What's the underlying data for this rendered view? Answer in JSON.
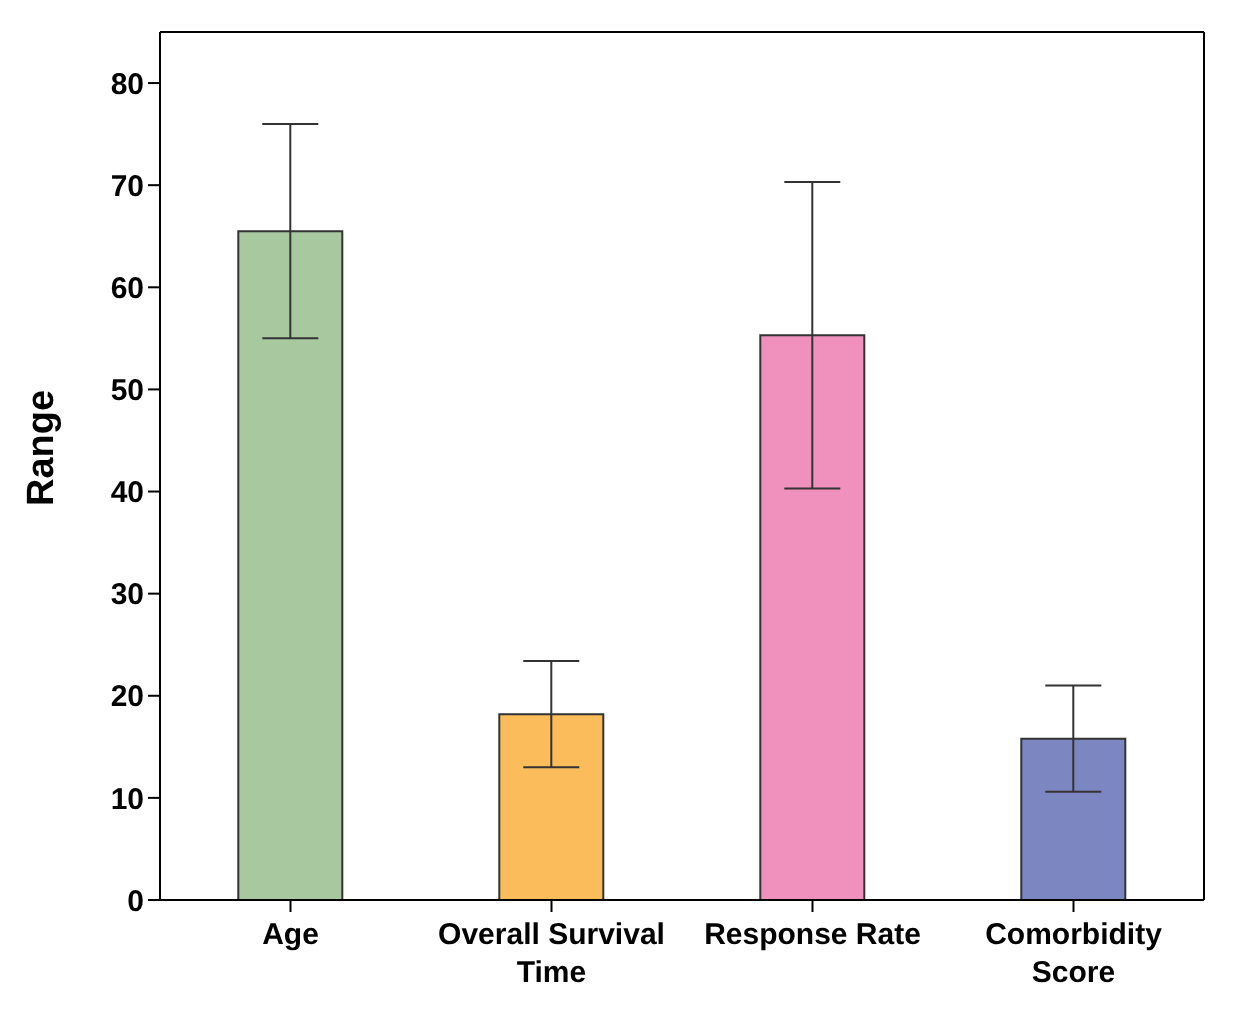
{
  "chart_data": {
    "type": "bar",
    "ylabel": "Range",
    "categories": [
      "Age",
      "Overall Survival Time",
      "Response Rate",
      "Comorbidity Score"
    ],
    "values": [
      65.5,
      18.2,
      55.3,
      15.8
    ],
    "errors": [
      10.5,
      5.2,
      15,
      5.2
    ],
    "colors": [
      "#a8c8a0",
      "#fbbc5c",
      "#f090bc",
      "#7c86c0"
    ],
    "ylim": [
      0,
      85
    ],
    "yticks": [
      0,
      10,
      20,
      30,
      40,
      50,
      60,
      70,
      80
    ]
  }
}
